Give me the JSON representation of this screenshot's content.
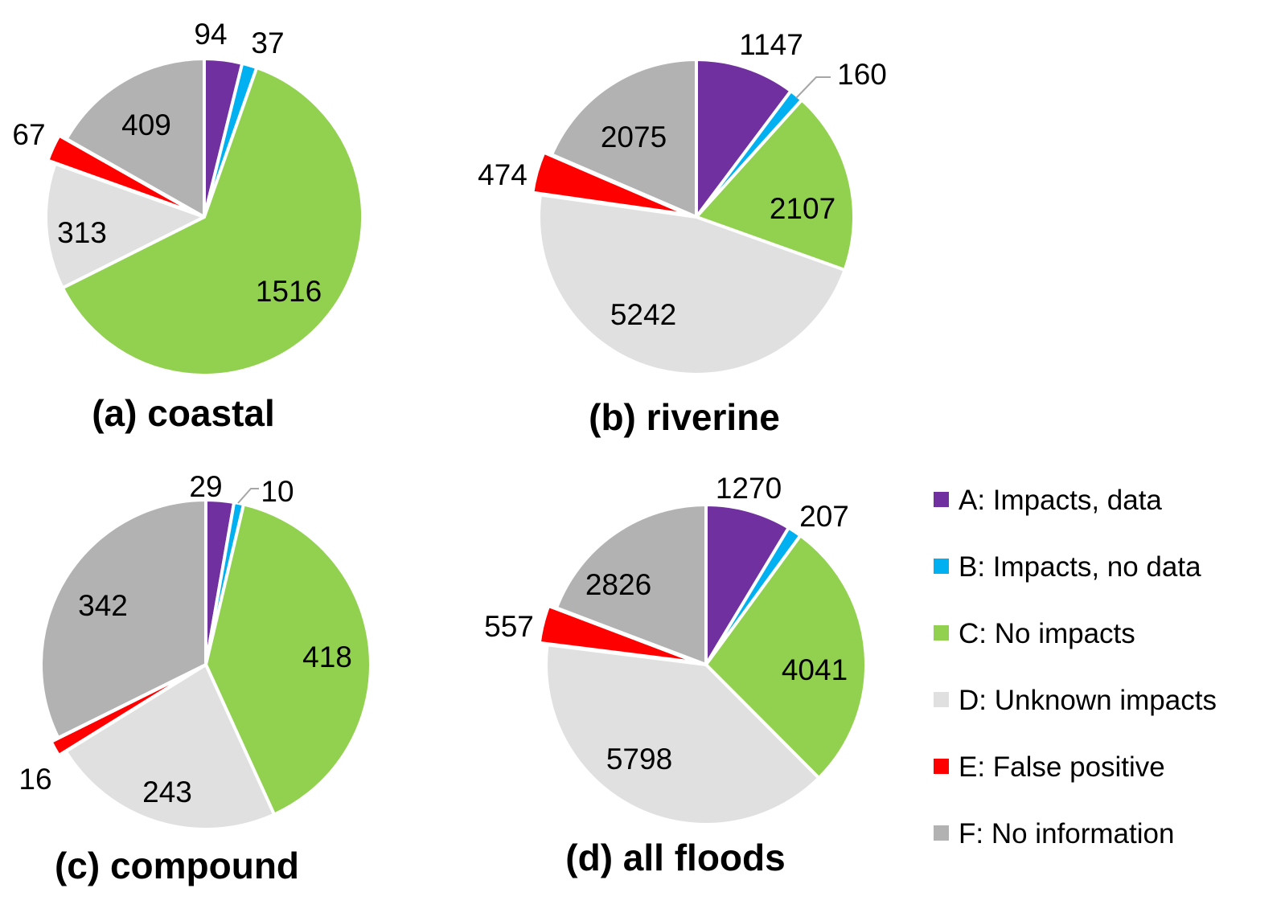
{
  "chart_data": [
    {
      "type": "pie",
      "title": "(a) coastal",
      "categories": [
        "A: Impacts, data",
        "B: Impacts, no data",
        "C: No impacts",
        "D: Unknown impacts",
        "E: False positive",
        "F: No information"
      ],
      "values": [
        94,
        37,
        1516,
        313,
        67,
        409
      ],
      "labels": [
        "94",
        "37",
        "1516",
        "313",
        "67",
        "409"
      ]
    },
    {
      "type": "pie",
      "title": "(b) riverine",
      "categories": [
        "A: Impacts, data",
        "B: Impacts, no data",
        "C: No impacts",
        "D: Unknown impacts",
        "E: False positive",
        "F: No information"
      ],
      "values": [
        1147,
        160,
        2107,
        5242,
        474,
        2075
      ],
      "labels": [
        "1147",
        "160",
        "2107",
        "5242",
        "474",
        "2075"
      ]
    },
    {
      "type": "pie",
      "title": "(c) compound",
      "categories": [
        "A: Impacts, data",
        "B: Impacts, no data",
        "C: No impacts",
        "D: Unknown impacts",
        "E: False positive",
        "F: No information"
      ],
      "values": [
        29,
        10,
        418,
        243,
        16,
        342
      ],
      "labels": [
        "29",
        "10",
        "418",
        "243",
        "16",
        "342"
      ]
    },
    {
      "type": "pie",
      "title": "(d) all floods",
      "categories": [
        "A: Impacts, data",
        "B: Impacts, no data",
        "C: No impacts",
        "D: Unknown impacts",
        "E: False positive",
        "F: No information"
      ],
      "values": [
        1270,
        207,
        4041,
        5798,
        557,
        2826
      ],
      "labels": [
        "1270",
        "207",
        "4041",
        "5798",
        "557",
        "2826"
      ]
    }
  ],
  "legend": {
    "placement": "right",
    "items": [
      {
        "label": "A: Impacts, data",
        "color": "#7030A0"
      },
      {
        "label": "B: Impacts, no data",
        "color": "#00B0F0"
      },
      {
        "label": "C: No impacts",
        "color": "#92D050"
      },
      {
        "label": "D: Unknown impacts",
        "color": "#E0E0E0"
      },
      {
        "label": "E: False positive",
        "color": "#FF0000"
      },
      {
        "label": "F: No information",
        "color": "#B2B2B2"
      }
    ]
  },
  "colors": [
    "#7030A0",
    "#00B0F0",
    "#92D050",
    "#E0E0E0",
    "#FF0000",
    "#B2B2B2"
  ]
}
